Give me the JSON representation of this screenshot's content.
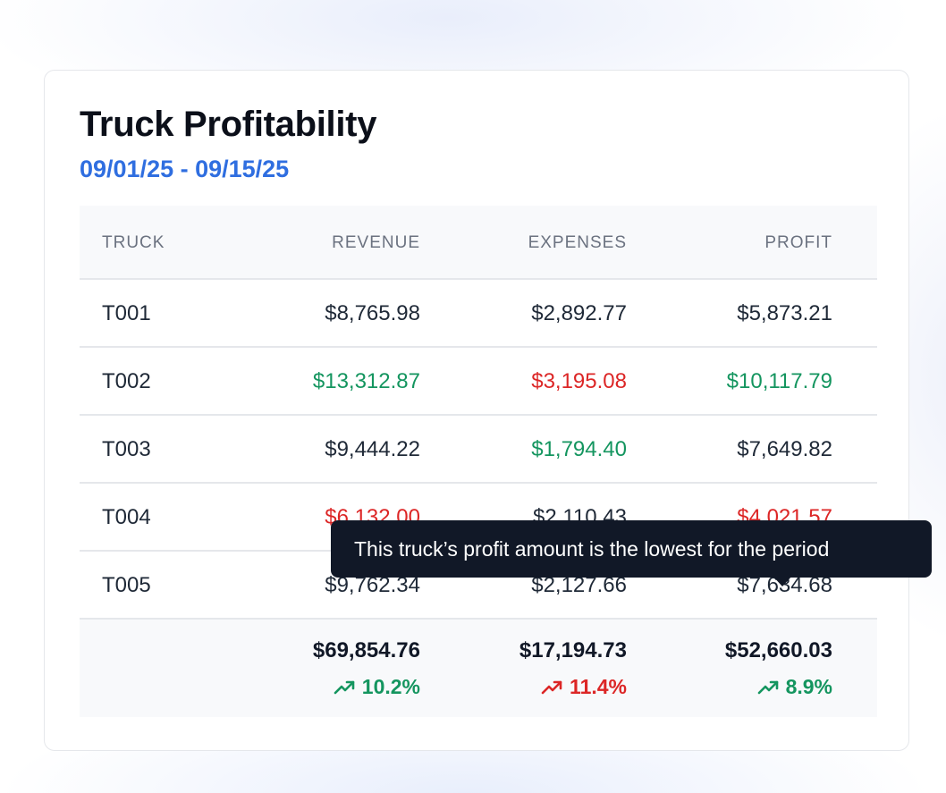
{
  "card": {
    "title": "Truck Profitability",
    "date_range": "09/01/25 - 09/15/25"
  },
  "table": {
    "columns": [
      "TRUCK",
      "REVENUE",
      "EXPENSES",
      "PROFIT"
    ],
    "rows": [
      {
        "truck": "T001",
        "revenue": "$8,765.98",
        "expenses": "$2,892.77",
        "profit": "$5,873.21"
      },
      {
        "truck": "T002",
        "revenue": "$13,312.87",
        "expenses": "$3,195.08",
        "profit": "$10,117.79"
      },
      {
        "truck": "T003",
        "revenue": "$9,444.22",
        "expenses": "$1,794.40",
        "profit": "$7,649.82"
      },
      {
        "truck": "T004",
        "revenue": "$6,132.00",
        "expenses": "$2,110.43",
        "profit": "$4,021.57"
      },
      {
        "truck": "T005",
        "revenue": "$9,762.34",
        "expenses": "$2,127.66",
        "profit": "$7,634.68"
      }
    ],
    "totals": {
      "revenue": "$69,854.76",
      "revenue_change": "10.2%",
      "expenses": "$17,194.73",
      "expenses_change": "11.4%",
      "profit": "$52,660.03",
      "profit_change": "8.9%"
    }
  },
  "tooltip": {
    "text": "This truck’s profit amount is the lowest for the period"
  },
  "colors": {
    "accent": "#2f6ee0",
    "positive": "#14955f",
    "negative": "#dc2626",
    "tooltip_bg": "#111827"
  },
  "icons": {
    "trend": "trending-up-icon"
  }
}
